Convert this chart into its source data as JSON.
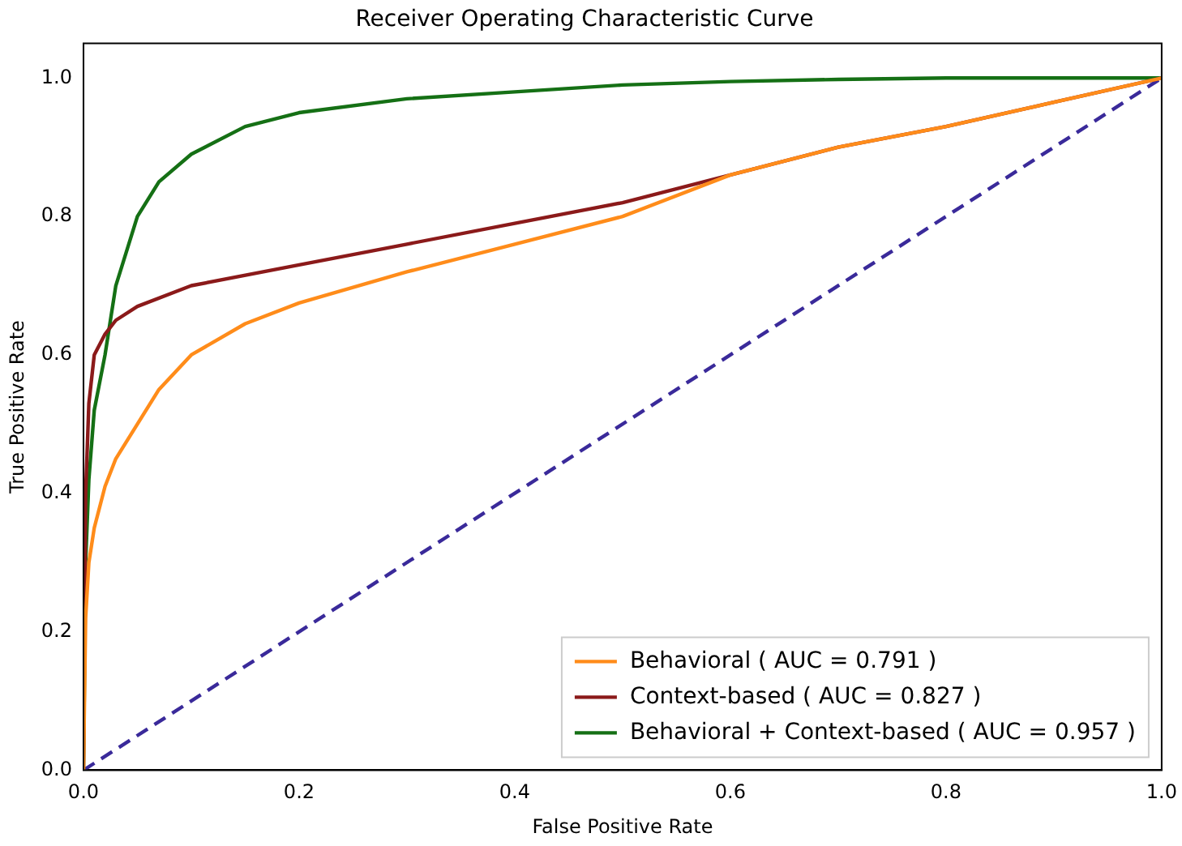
{
  "chart_data": {
    "type": "line",
    "title": "Receiver Operating Characteristic Curve",
    "xlabel": "False Positive Rate",
    "ylabel": "True Positive Rate",
    "xlim": [
      0,
      1
    ],
    "ylim": [
      0,
      1.05
    ],
    "xticks": [
      {
        "value": 0,
        "label": "0.0"
      },
      {
        "value": 0.2,
        "label": "0.2"
      },
      {
        "value": 0.4,
        "label": "0.4"
      },
      {
        "value": 0.6,
        "label": "0.6"
      },
      {
        "value": 0.8,
        "label": "0.8"
      },
      {
        "value": 1,
        "label": "1.0"
      }
    ],
    "yticks": [
      {
        "value": 0,
        "label": "0.0"
      },
      {
        "value": 0.2,
        "label": "0.2"
      },
      {
        "value": 0.4,
        "label": "0.4"
      },
      {
        "value": 0.6,
        "label": "0.6"
      },
      {
        "value": 0.8,
        "label": "0.8"
      },
      {
        "value": 1,
        "label": "1.0"
      }
    ],
    "grid": false,
    "legend": "bottom right",
    "marker": "none",
    "series": [
      {
        "name": "Behavioral ( AUC = 0.791 )",
        "color": "#ff8c1a",
        "x": [
          0,
          0.002,
          0.005,
          0.01,
          0.02,
          0.03,
          0.05,
          0.07,
          0.1,
          0.15,
          0.2,
          0.3,
          0.4,
          0.5,
          0.6,
          0.7,
          0.8,
          0.9,
          1
        ],
        "values": [
          0,
          0.22,
          0.3,
          0.35,
          0.41,
          0.45,
          0.5,
          0.55,
          0.6,
          0.645,
          0.675,
          0.72,
          0.76,
          0.8,
          0.86,
          0.9,
          0.93,
          0.965,
          1
        ]
      },
      {
        "name": "Context-based ( AUC = 0.827 )",
        "color": "#8b1a1a",
        "x": [
          0,
          0.002,
          0.005,
          0.01,
          0.02,
          0.03,
          0.05,
          0.1,
          0.2,
          0.3,
          0.4,
          0.5,
          0.6,
          0.7,
          0.8,
          0.9,
          1
        ],
        "values": [
          0,
          0.4,
          0.53,
          0.6,
          0.63,
          0.65,
          0.67,
          0.7,
          0.73,
          0.76,
          0.79,
          0.82,
          0.86,
          0.9,
          0.93,
          0.965,
          1
        ]
      },
      {
        "name": "Behavioral + Context-based ( AUC = 0.957 )",
        "color": "#157015",
        "x": [
          0,
          0.002,
          0.005,
          0.01,
          0.02,
          0.03,
          0.05,
          0.07,
          0.1,
          0.15,
          0.2,
          0.3,
          0.4,
          0.5,
          0.6,
          0.7,
          0.8,
          1
        ],
        "values": [
          0,
          0.3,
          0.42,
          0.52,
          0.6,
          0.7,
          0.8,
          0.85,
          0.89,
          0.93,
          0.95,
          0.97,
          0.98,
          0.99,
          0.995,
          0.998,
          1,
          1
        ]
      },
      {
        "color": "#3a2a9a",
        "line_style": "dashed",
        "x": [
          0,
          1
        ],
        "values": [
          0,
          1
        ]
      }
    ]
  }
}
